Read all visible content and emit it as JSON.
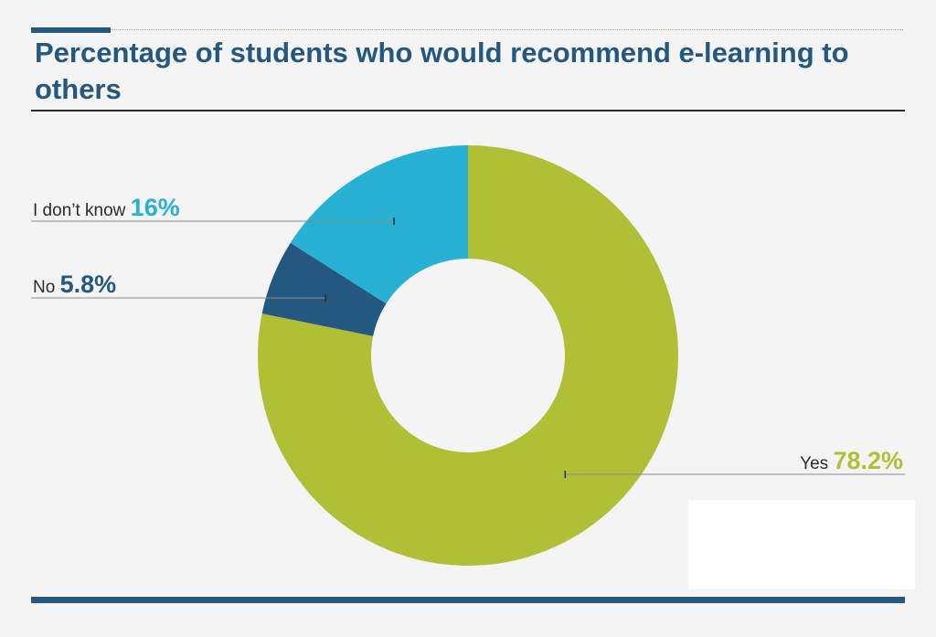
{
  "title": "Percentage of students who would recommend e-learning to others",
  "colors": {
    "accent": "#245880",
    "background": "#f4f4f4",
    "yes": "#b0bf35",
    "dont_know": "#27b1d3",
    "no": "#245880"
  },
  "chart_data": {
    "type": "pie",
    "variant": "donut",
    "title": "Percentage of students who would recommend e-learning to others",
    "slices": [
      {
        "label": "Yes",
        "value": 78.2,
        "value_label": "78.2%",
        "color": "#b0bf35"
      },
      {
        "label": "No",
        "value": 5.8,
        "value_label": "5.8%",
        "color": "#245880"
      },
      {
        "label": "I don’t know",
        "value": 16,
        "value_label": "16%",
        "color": "#27b1d3"
      }
    ]
  }
}
